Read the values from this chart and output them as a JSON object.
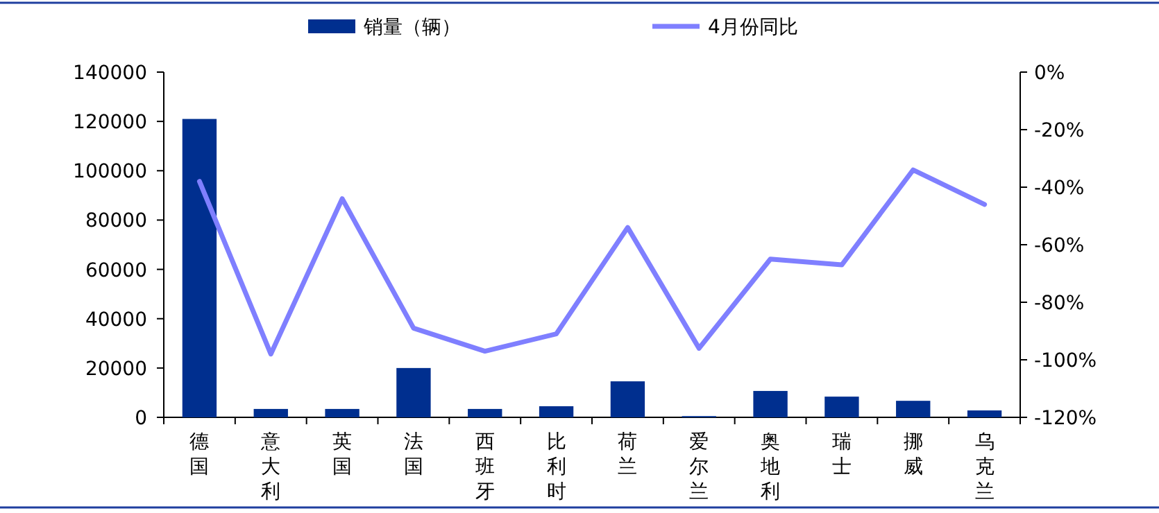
{
  "chart_data": {
    "type": "bar",
    "categories": [
      "德国",
      "意大利",
      "英国",
      "法国",
      "西班牙",
      "比利时",
      "荷兰",
      "爱尔兰",
      "奥地利",
      "瑞士",
      "挪威",
      "乌克兰"
    ],
    "series": [
      {
        "name": "销量（辆）",
        "color": "#002f8f",
        "values": [
          121000,
          3400,
          3400,
          20000,
          3400,
          4500,
          14600,
          500,
          10700,
          8400,
          6700,
          2800
        ]
      },
      {
        "name": "4月份同比",
        "type": "line",
        "axis": "y2",
        "color": "#7f7fff",
        "values": [
          -38,
          -98,
          -44,
          -89,
          -97,
          -91,
          -54,
          -96,
          -65,
          -67,
          -34,
          -46
        ]
      }
    ],
    "ylim": [
      0,
      140000
    ],
    "yticks": [
      0,
      20000,
      40000,
      60000,
      80000,
      100000,
      120000,
      140000
    ],
    "y2lim": [
      -120,
      0
    ],
    "y2ticks": [
      {
        "value": -120,
        "label": "-120%"
      },
      {
        "value": -100,
        "label": "-100%"
      },
      {
        "value": -80,
        "label": "-80%"
      },
      {
        "value": -60,
        "label": "-60%"
      },
      {
        "value": -40,
        "label": "-40%"
      },
      {
        "value": -20,
        "label": "-20%"
      },
      {
        "value": 0,
        "label": "0%"
      }
    ],
    "legend": "top",
    "grid": false
  }
}
